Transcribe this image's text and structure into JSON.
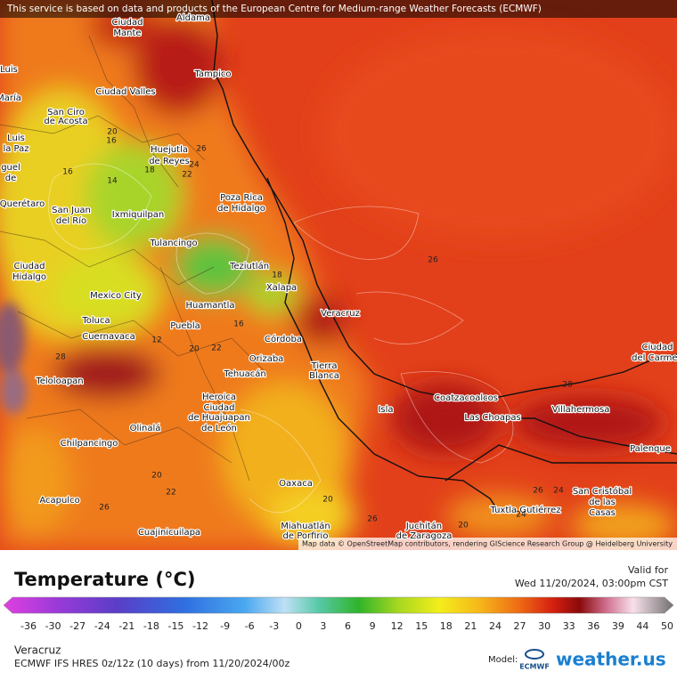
{
  "banner": "This service is based on data and products of the European Centre for Medium-range Weather Forecasts (ECMWF)",
  "map": {
    "cities": [
      "Aldama",
      "Ciudad",
      "Mante",
      "Luis",
      "María",
      "Tampico",
      "Ciudad Valles",
      "San Ciro",
      "de Acosta",
      "Luis",
      "la Paz",
      "guel",
      "de",
      "Huejutla",
      "de Reyes",
      "Poza Rica",
      "de Hidalgo",
      "Querétaro",
      "San Juan",
      "del Río",
      "Ixmiquilpan",
      "Tulancingo",
      "Teziutlán",
      "Ciudad",
      "Hidalgo",
      "Xalapa",
      "Mexico City",
      "Huamantla",
      "Toluca",
      "Puebla",
      "Cuernavaca",
      "Veracruz",
      "Córdoba",
      "Orizaba",
      "Tierra",
      "Blanca",
      "Tehuacán",
      "Teloloapan",
      "Heroica",
      "Ciudad",
      "de Huajuapan",
      "de León",
      "Isla",
      "Coatzacoalcos",
      "Las Choapas",
      "Villahermosa",
      "Ciudad",
      "del Carmen",
      "Palenque",
      "Olinalá",
      "Chilpancingo",
      "Acapulco",
      "Oaxaca",
      "San Cristóbal",
      "de las",
      "Casas",
      "Tuxtla Gutiérrez",
      "Cuajinicuilapa",
      "Miahuatlán",
      "de Porfirio",
      "Juchitán",
      "de Zaragoza"
    ],
    "contour_labels": [
      "26",
      "20",
      "16",
      "16",
      "14",
      "18",
      "24",
      "22",
      "26",
      "18",
      "16",
      "12",
      "20",
      "22",
      "28",
      "26",
      "22",
      "20",
      "20",
      "26",
      "26",
      "24",
      "28",
      "24",
      "20"
    ],
    "attribution": "Map data © OpenStreetMap contributors, rendering GIScience Research Group @ Heidelberg University"
  },
  "legend": {
    "title": "Temperature (°C)",
    "valid_label": "Valid for",
    "valid_time": "Wed 11/20/2024, 03:00pm CST",
    "scale_ticks": [
      -36,
      -30,
      -27,
      -24,
      -21,
      -18,
      -15,
      -12,
      -9,
      -6,
      -3,
      0,
      3,
      6,
      9,
      12,
      15,
      18,
      21,
      24,
      27,
      30,
      33,
      36,
      39,
      44,
      50
    ]
  },
  "footer": {
    "location": "Veracruz",
    "model_run": "ECMWF IFS HRES 0z/12z (10 days) from 11/20/2024/00z",
    "model_label": "Model:",
    "model_logo": "ECMWF",
    "brand": "weather.us"
  }
}
